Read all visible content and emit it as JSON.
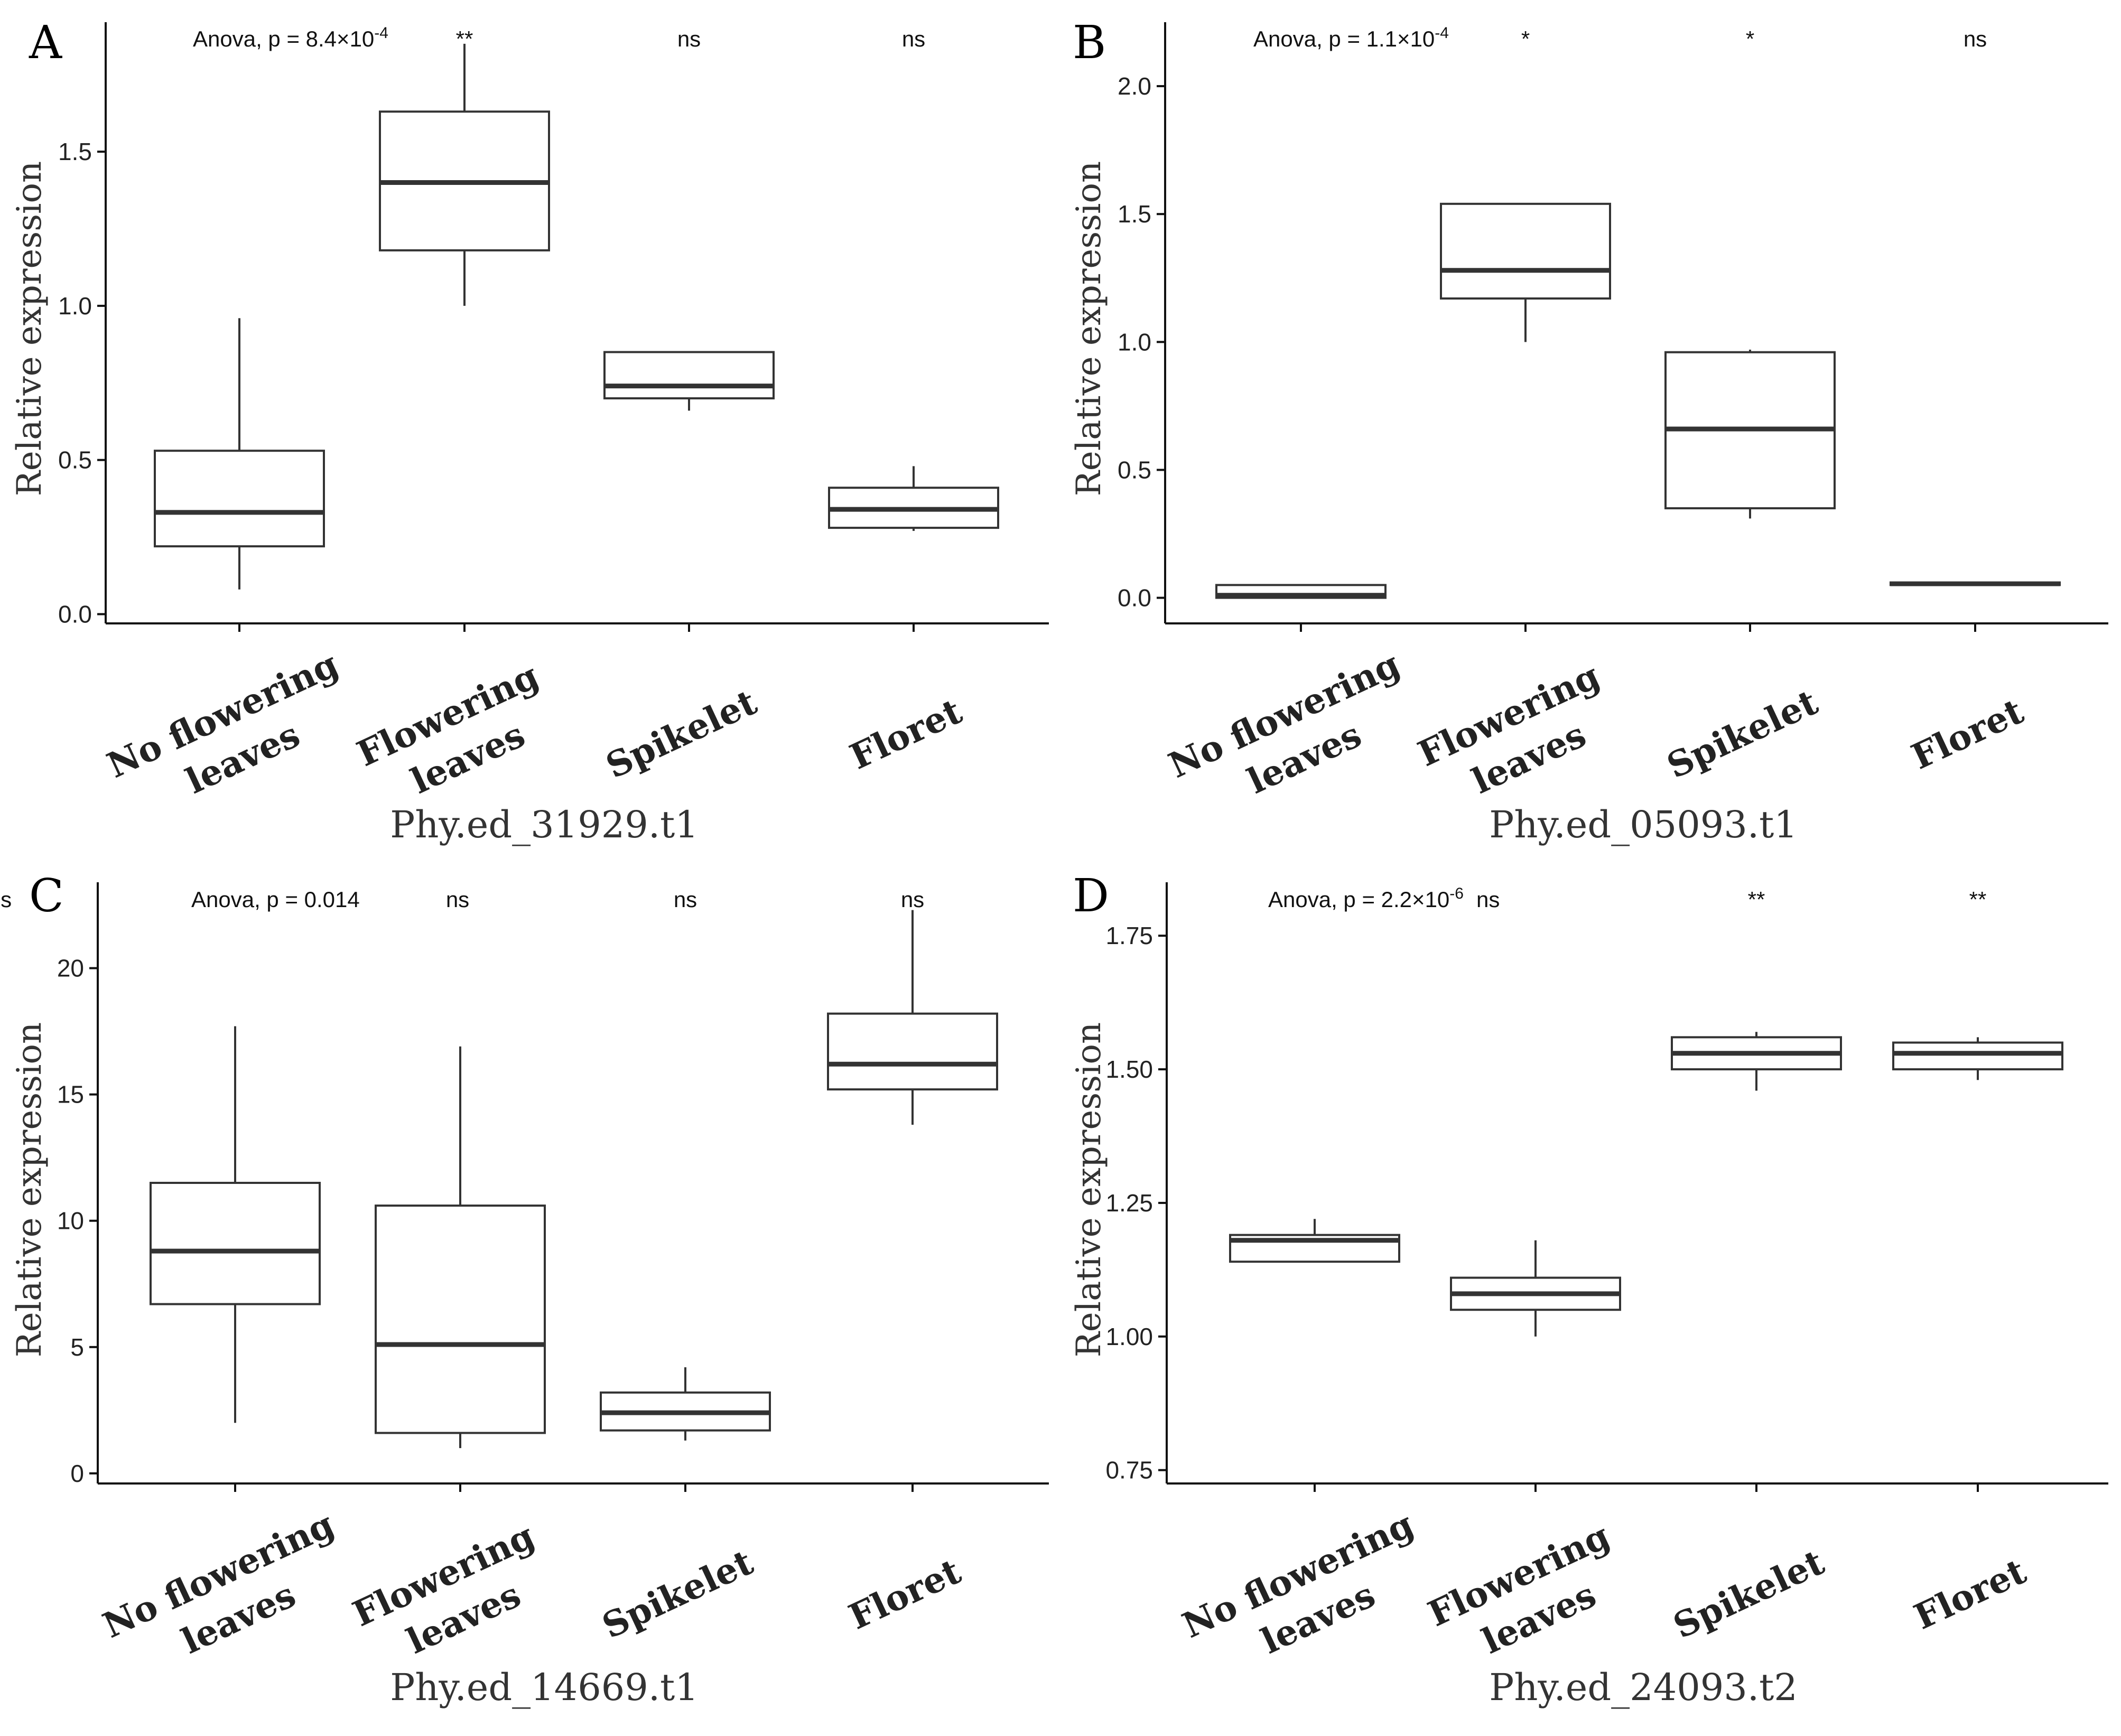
{
  "chart_data": [
    {
      "type": "box",
      "panel_label": "A",
      "title": "",
      "xlabel": "Phy.ed_31929.t1",
      "ylabel": "Relative expression",
      "ylim": [
        -0.03,
        1.92
      ],
      "yticks": [
        0.0,
        0.5,
        1.0,
        1.5
      ],
      "ytick_labels": [
        "0.0",
        "0.5",
        "1.0",
        "1.5"
      ],
      "anova": {
        "prefix": "Anova, p = ",
        "mantissa": "8.4×10",
        "exponent": "-4",
        "text": ""
      },
      "categories": [
        {
          "lines": [
            "No flowering",
            "leaves"
          ],
          "min": 0.08,
          "q1": 0.22,
          "median": 0.33,
          "q3": 0.53,
          "max": 0.96,
          "sig": ""
        },
        {
          "lines": [
            "Flowering",
            "leaves"
          ],
          "min": 1.0,
          "q1": 1.18,
          "median": 1.4,
          "q3": 1.63,
          "max": 1.85,
          "sig": "**"
        },
        {
          "lines": [
            "Spikelet"
          ],
          "min": 0.66,
          "q1": 0.7,
          "median": 0.74,
          "q3": 0.85,
          "max": 0.85,
          "sig": "ns"
        },
        {
          "lines": [
            "Floret"
          ],
          "min": 0.27,
          "q1": 0.28,
          "median": 0.34,
          "q3": 0.41,
          "max": 0.48,
          "sig": "ns"
        }
      ]
    },
    {
      "type": "box",
      "panel_label": "B",
      "title": "",
      "xlabel": "Phy.ed_05093.t1",
      "ylabel": "Relative expression",
      "ylim": [
        -0.1,
        2.25
      ],
      "yticks": [
        0.0,
        0.5,
        1.0,
        1.5,
        2.0
      ],
      "ytick_labels": [
        "0.0",
        "0.5",
        "1.0",
        "1.5",
        "2.0"
      ],
      "anova": {
        "prefix": "Anova, p = ",
        "mantissa": "1.1×10",
        "exponent": "-4",
        "text": ""
      },
      "categories": [
        {
          "lines": [
            "No flowering",
            "leaves"
          ],
          "min": 0.0,
          "q1": 0.0,
          "median": 0.01,
          "q3": 0.05,
          "max": 0.05,
          "sig": ""
        },
        {
          "lines": [
            "Flowering",
            "leaves"
          ],
          "min": 1.0,
          "q1": 1.17,
          "median": 1.28,
          "q3": 1.54,
          "max": 1.54,
          "sig": "*"
        },
        {
          "lines": [
            "Spikelet"
          ],
          "min": 0.31,
          "q1": 0.35,
          "median": 0.66,
          "q3": 0.96,
          "max": 0.97,
          "sig": "*"
        },
        {
          "lines": [
            "Floret"
          ],
          "min": 0.05,
          "q1": 0.05,
          "median": 0.055,
          "q3": 0.06,
          "max": 0.06,
          "sig": "ns"
        }
      ]
    },
    {
      "type": "box",
      "panel_label": "C",
      "title": "",
      "xlabel": "Phy.ed_14669.t1",
      "ylabel": "Relative expression",
      "ylim": [
        -0.4,
        23.4
      ],
      "yticks": [
        0,
        5,
        10,
        15,
        20
      ],
      "ytick_labels": [
        "0",
        "5",
        "10",
        "15",
        "20"
      ],
      "anova": {
        "prefix": "Anova, p = 0.014",
        "mantissa": "",
        "exponent": "",
        "text": ""
      },
      "categories": [
        {
          "lines": [
            "No flowering",
            "leaves"
          ],
          "min": 2.0,
          "q1": 6.7,
          "median": 8.8,
          "q3": 11.5,
          "max": 17.7,
          "sig": "ns"
        },
        {
          "lines": [
            "Flowering",
            "leaves"
          ],
          "min": 1.0,
          "q1": 1.6,
          "median": 5.1,
          "q3": 10.6,
          "max": 16.9,
          "sig": "ns"
        },
        {
          "lines": [
            "Spikelet"
          ],
          "min": 1.3,
          "q1": 1.7,
          "median": 2.4,
          "q3": 3.2,
          "max": 4.2,
          "sig": "ns"
        },
        {
          "lines": [
            "Floret"
          ],
          "min": 13.8,
          "q1": 15.2,
          "median": 16.2,
          "q3": 18.2,
          "max": 22.3,
          "sig": "ns"
        }
      ]
    },
    {
      "type": "box",
      "panel_label": "D",
      "title": "",
      "xlabel": "Phy.ed_24093.t2",
      "ylabel": "Relative expression",
      "ylim": [
        0.725,
        1.85
      ],
      "yticks": [
        0.75,
        1.0,
        1.25,
        1.5,
        1.75
      ],
      "ytick_labels": [
        "0.75",
        "1.00",
        "1.25",
        "1.50",
        "1.75"
      ],
      "anova": {
        "prefix": "Anova, p = ",
        "mantissa": "2.2×10",
        "exponent": "-6",
        "text": "ns"
      },
      "categories": [
        {
          "lines": [
            "No flowering",
            "leaves"
          ],
          "min": 1.14,
          "q1": 1.14,
          "median": 1.18,
          "q3": 1.19,
          "max": 1.22,
          "sig": ""
        },
        {
          "lines": [
            "Flowering",
            "leaves"
          ],
          "min": 1.0,
          "q1": 1.05,
          "median": 1.08,
          "q3": 1.11,
          "max": 1.18,
          "sig": ""
        },
        {
          "lines": [
            "Spikelet"
          ],
          "min": 1.46,
          "q1": 1.5,
          "median": 1.53,
          "q3": 1.56,
          "max": 1.57,
          "sig": "**"
        },
        {
          "lines": [
            "Floret"
          ],
          "min": 1.48,
          "q1": 1.5,
          "median": 1.53,
          "q3": 1.55,
          "max": 1.56,
          "sig": "**"
        }
      ]
    }
  ]
}
